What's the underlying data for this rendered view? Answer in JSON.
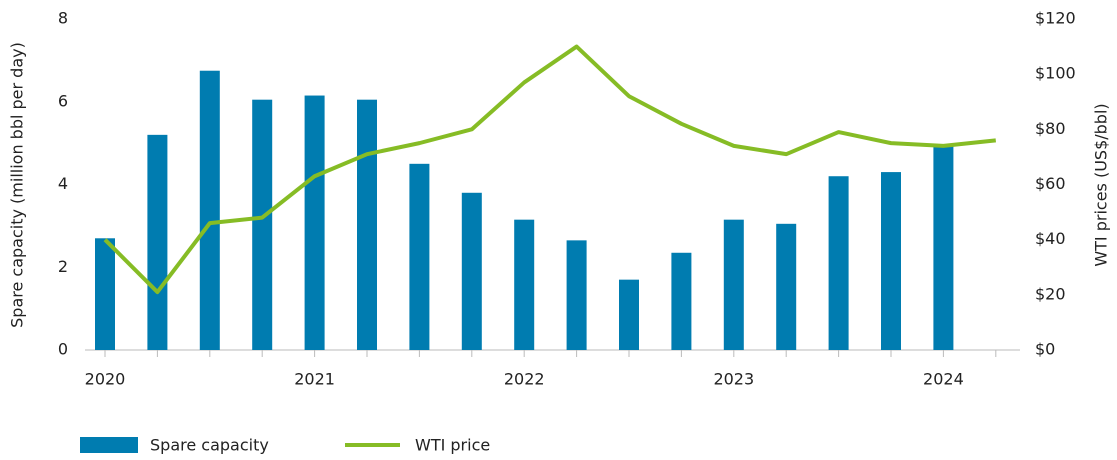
{
  "chart_data": {
    "type": "bar_line",
    "y_label": "Spare capacity (million bbl per day)",
    "y2_label": "WTI prices (US$/bbl)",
    "categories": [
      "2020",
      null,
      null,
      null,
      "2021",
      null,
      null,
      null,
      "2022",
      null,
      null,
      null,
      "2023",
      null,
      null,
      null,
      "2024",
      null
    ],
    "series": [
      {
        "name": "Spare capacity",
        "type": "bar",
        "color": "#007cb0",
        "axis": "y",
        "values": [
          2.7,
          5.2,
          6.75,
          6.05,
          6.15,
          6.05,
          4.5,
          3.8,
          3.15,
          2.65,
          1.7,
          2.35,
          3.15,
          3.05,
          4.2,
          4.3,
          4.95,
          null
        ]
      },
      {
        "name": "WTI price",
        "type": "line",
        "color": "#86bc25",
        "axis": "y2",
        "values": [
          40,
          21,
          46,
          48,
          63,
          71,
          75,
          80,
          97,
          110,
          92,
          82,
          74,
          71,
          79,
          75,
          74,
          76
        ]
      }
    ],
    "ylim": [
      0,
      8
    ],
    "yticks": [
      0,
      2,
      4,
      6,
      8
    ],
    "y2lim": [
      0,
      120
    ],
    "y2ticks": [
      {
        "value": 0,
        "label": "$0"
      },
      {
        "value": 20,
        "label": "$20"
      },
      {
        "value": 40,
        "label": "$40"
      },
      {
        "value": 60,
        "label": "$60"
      },
      {
        "value": 80,
        "label": "$80"
      },
      {
        "value": 100,
        "label": "$100"
      },
      {
        "value": 120,
        "label": "$120"
      }
    ],
    "grid": false,
    "legend": "bottom"
  }
}
